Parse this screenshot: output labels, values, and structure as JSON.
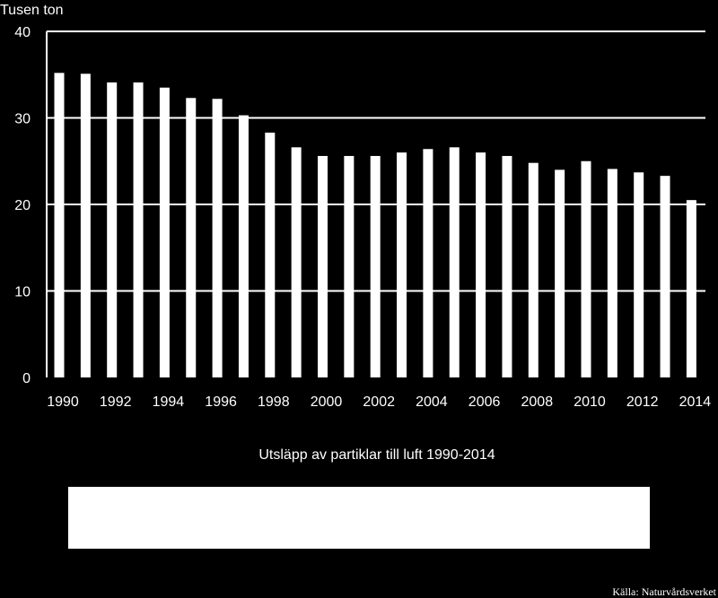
{
  "chart_data": {
    "type": "bar",
    "ylabel": "Tusen ton",
    "ylim": [
      0,
      40
    ],
    "yticks": [
      0,
      10,
      20,
      30,
      40
    ],
    "grid": true,
    "categories": [
      "1990",
      "1991",
      "1992",
      "1993",
      "1994",
      "1995",
      "1996",
      "1997",
      "1998",
      "1999",
      "2000",
      "2001",
      "2002",
      "2003",
      "2004",
      "2005",
      "2006",
      "2007",
      "2008",
      "2009",
      "2010",
      "2011",
      "2012",
      "2013",
      "2014"
    ],
    "xtick_labels": [
      "1990",
      "1992",
      "1994",
      "1996",
      "1998",
      "2000",
      "2002",
      "2004",
      "2006",
      "2008",
      "2010",
      "2012",
      "2014"
    ],
    "values": [
      35.2,
      35.1,
      34.1,
      34.1,
      33.5,
      32.3,
      32.2,
      30.3,
      28.3,
      26.6,
      25.6,
      25.6,
      25.6,
      26.0,
      26.4,
      26.6,
      26.0,
      25.6,
      24.8,
      24.0,
      25.0,
      24.1,
      23.7,
      23.3,
      20.5
    ],
    "caption": "Utsläpp av partiklar till luft 1990-2014",
    "source": "Källa: Naturvårdsverket"
  },
  "colors": {
    "background": "#000000",
    "bar": "#ffffff",
    "grid": "#ffffff",
    "legend_box": "#ffffff"
  }
}
